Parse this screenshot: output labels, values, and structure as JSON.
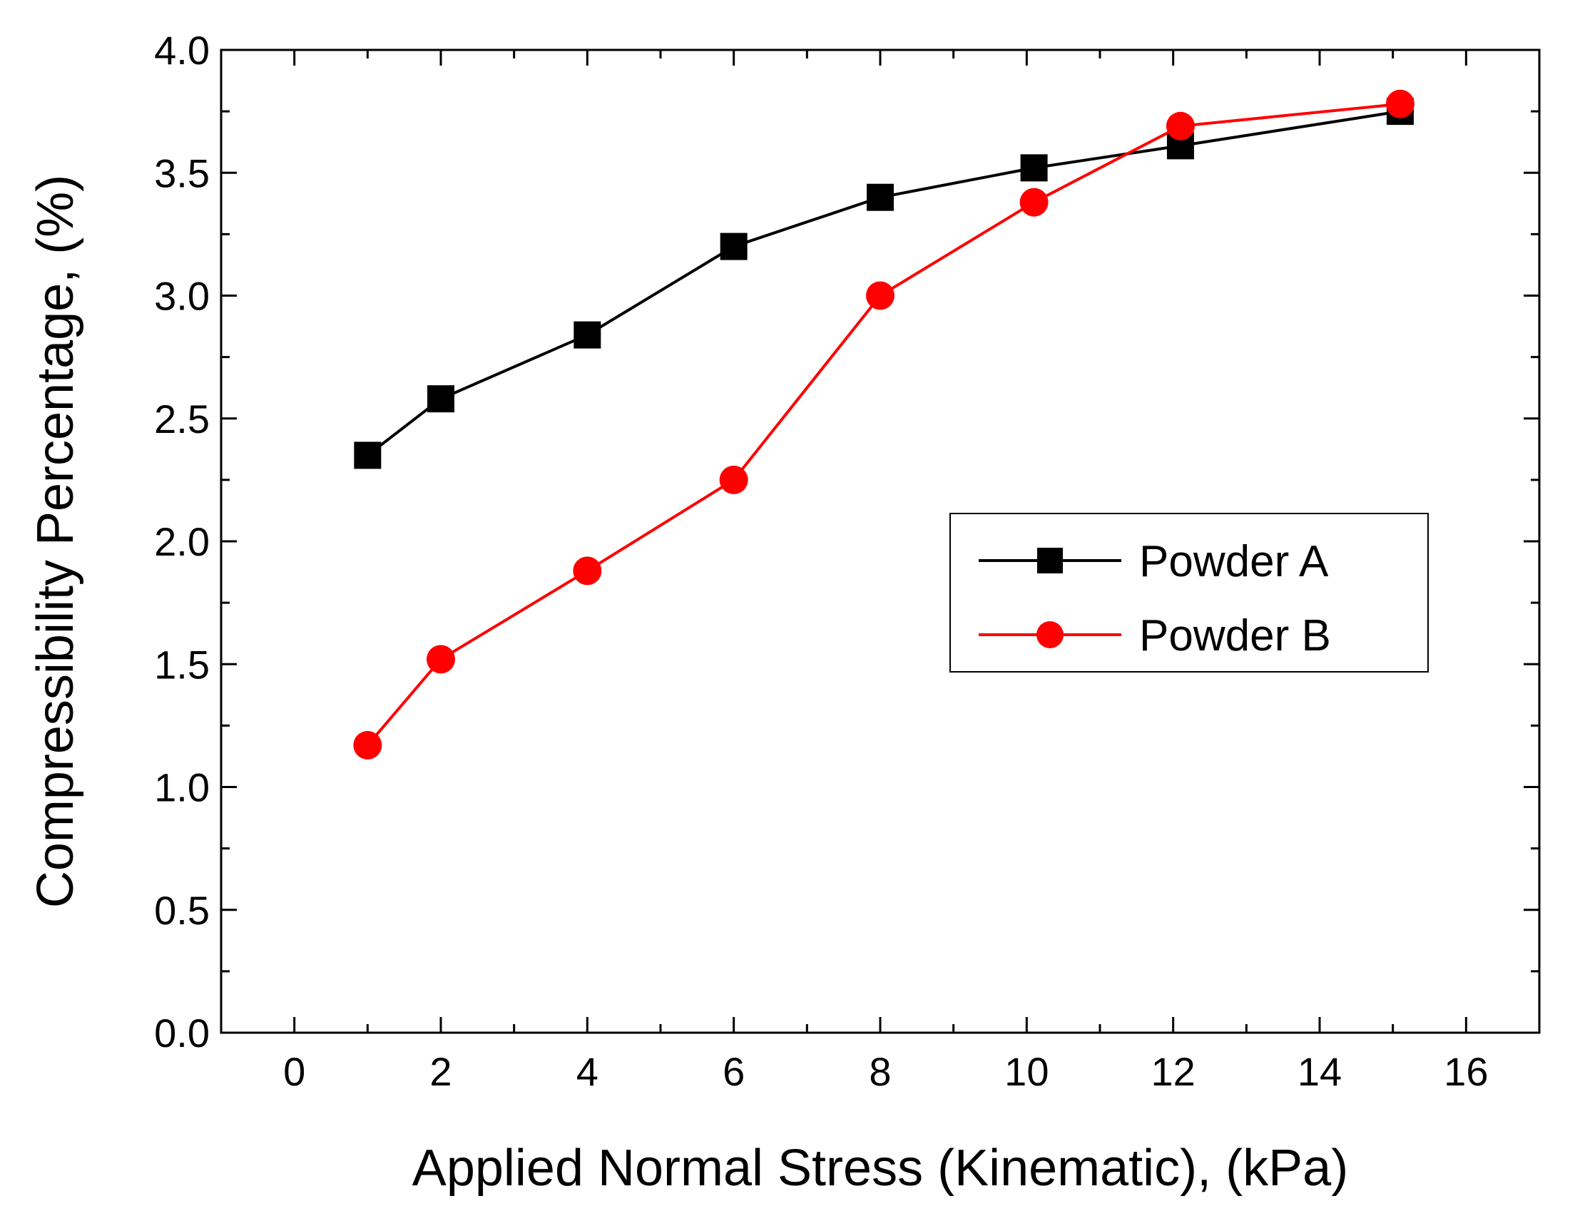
{
  "chart_data": {
    "type": "line",
    "title": "",
    "xlabel": "Applied Normal Stress (Kinematic), (kPa)",
    "ylabel": "Compressibility Percentage, (%)",
    "xlim": [
      -1,
      17
    ],
    "ylim": [
      0.0,
      4.0
    ],
    "xticks": [
      0,
      2,
      4,
      6,
      8,
      10,
      12,
      14,
      16
    ],
    "xtick_labels": [
      "0",
      "2",
      "4",
      "6",
      "8",
      "10",
      "12",
      "14",
      "16"
    ],
    "yticks": [
      0.0,
      0.5,
      1.0,
      1.5,
      2.0,
      2.5,
      3.0,
      3.5,
      4.0
    ],
    "ytick_labels": [
      "0.0",
      "0.5",
      "1.0",
      "1.5",
      "2.0",
      "2.5",
      "3.0",
      "3.5",
      "4.0"
    ],
    "grid": false,
    "legend_position": "center-right",
    "series": [
      {
        "name": "Powder A",
        "color": "#000000",
        "marker": "square",
        "x": [
          1,
          2,
          4,
          6,
          8,
          10.1,
          12.1,
          15.1
        ],
        "y": [
          2.35,
          2.58,
          2.84,
          3.2,
          3.4,
          3.52,
          3.61,
          3.75
        ]
      },
      {
        "name": "Powder B",
        "color": "#ff0000",
        "marker": "circle",
        "x": [
          1,
          2,
          4,
          6,
          8,
          10.1,
          12.1,
          15.1
        ],
        "y": [
          1.17,
          1.52,
          1.88,
          2.25,
          3.0,
          3.38,
          3.69,
          3.78
        ]
      }
    ]
  }
}
